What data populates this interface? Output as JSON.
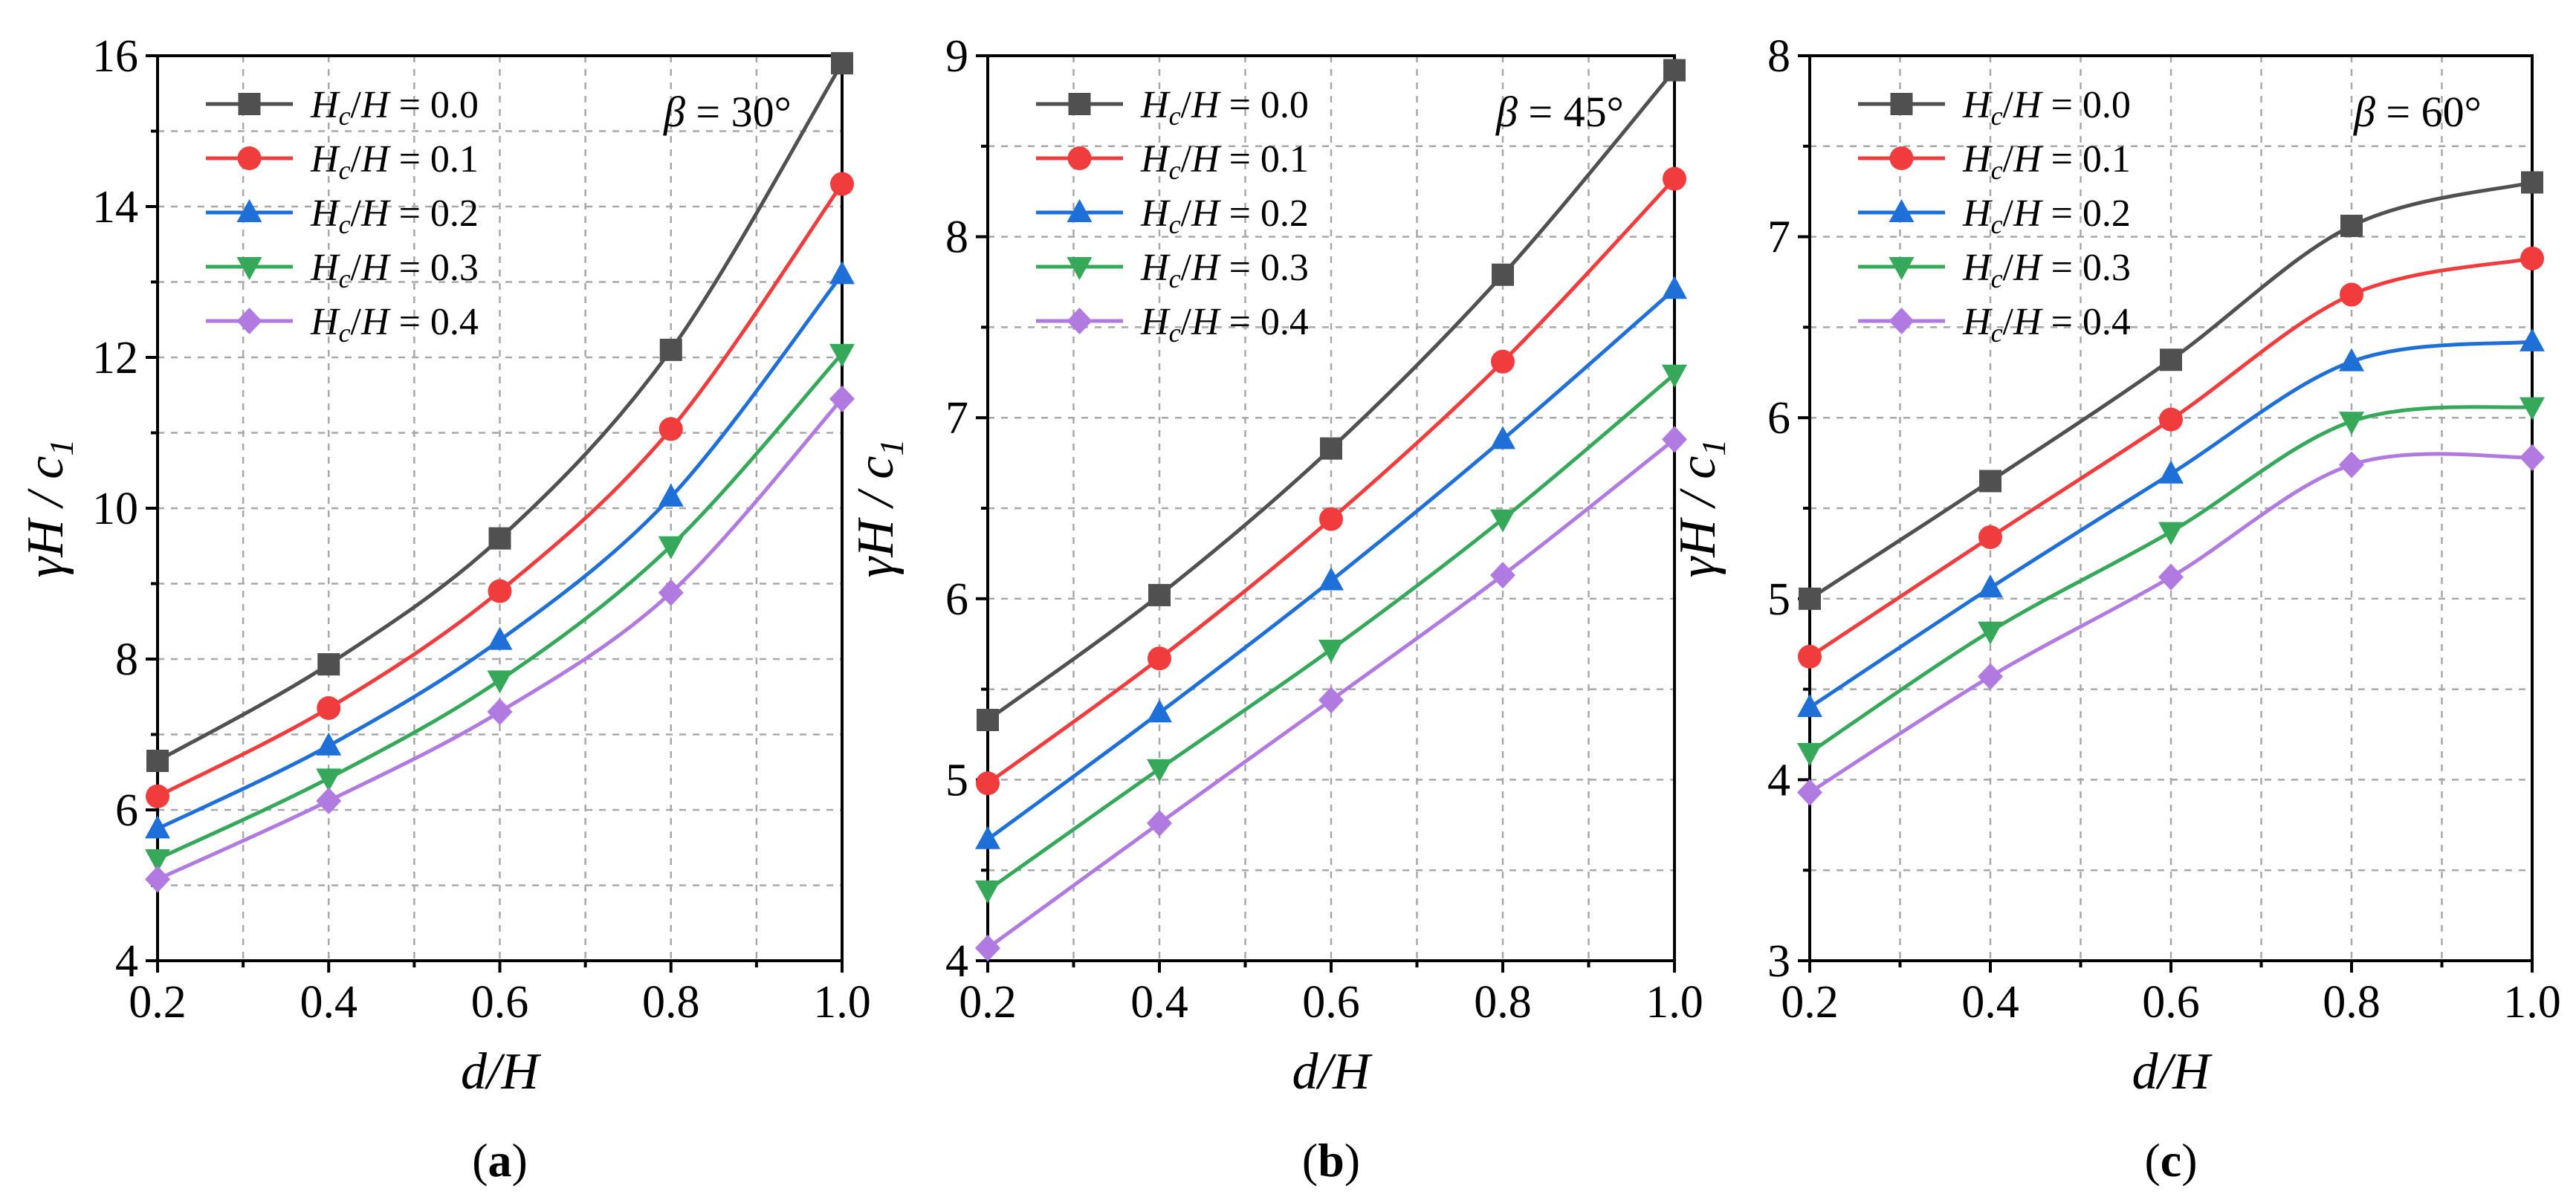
{
  "chart_data": [
    {
      "type": "line",
      "annotation": "β = 30°",
      "panel_label": "a",
      "xlabel": "d/H",
      "ylabel": "γH / c1",
      "xlim": [
        0.2,
        1.0
      ],
      "ylim": [
        4,
        16
      ],
      "x_ticks": [
        "0.2",
        "0.4",
        "0.6",
        "0.8",
        "1.0"
      ],
      "y_ticks": [
        "4",
        "6",
        "8",
        "10",
        "12",
        "14",
        "16"
      ],
      "legend_position": "top-left",
      "x": [
        0.2,
        0.4,
        0.6,
        0.8,
        1.0
      ],
      "series": [
        {
          "name": "Hc/H = 0.0",
          "legend_value": "0.0",
          "color": "#505050",
          "marker": "square",
          "values": [
            6.65,
            7.93,
            9.6,
            12.1,
            15.9
          ]
        },
        {
          "name": "Hc/H = 0.1",
          "legend_value": "0.1",
          "color": "#f03c3c",
          "marker": "circle",
          "values": [
            6.18,
            7.35,
            8.9,
            11.05,
            14.3
          ]
        },
        {
          "name": "Hc/H = 0.2",
          "legend_value": "0.2",
          "color": "#1f6fd8",
          "marker": "triangle-up",
          "values": [
            5.75,
            6.85,
            8.25,
            10.15,
            13.1
          ]
        },
        {
          "name": "Hc/H = 0.3",
          "legend_value": "0.3",
          "color": "#35a85a",
          "marker": "triangle-down",
          "values": [
            5.35,
            6.42,
            7.72,
            9.5,
            12.05
          ]
        },
        {
          "name": "Hc/H = 0.4",
          "legend_value": "0.4",
          "color": "#b07ae0",
          "marker": "diamond",
          "values": [
            5.08,
            6.12,
            7.3,
            8.88,
            11.45
          ]
        }
      ]
    },
    {
      "type": "line",
      "annotation": "β = 45°",
      "panel_label": "b",
      "xlabel": "d/H",
      "ylabel": "γH / c1",
      "xlim": [
        0.2,
        1.0
      ],
      "ylim": [
        4,
        9
      ],
      "x_ticks": [
        "0.2",
        "0.4",
        "0.6",
        "0.8",
        "1.0"
      ],
      "y_ticks": [
        "4",
        "5",
        "6",
        "7",
        "8",
        "9"
      ],
      "legend_position": "top-left",
      "x": [
        0.2,
        0.4,
        0.6,
        0.8,
        1.0
      ],
      "series": [
        {
          "name": "Hc/H = 0.0",
          "legend_value": "0.0",
          "color": "#505050",
          "marker": "square",
          "values": [
            5.33,
            6.02,
            6.83,
            7.79,
            8.92
          ]
        },
        {
          "name": "Hc/H = 0.1",
          "legend_value": "0.1",
          "color": "#f03c3c",
          "marker": "circle",
          "values": [
            4.98,
            5.67,
            6.44,
            7.31,
            8.32
          ]
        },
        {
          "name": "Hc/H = 0.2",
          "legend_value": "0.2",
          "color": "#1f6fd8",
          "marker": "triangle-up",
          "values": [
            4.67,
            5.37,
            6.1,
            6.88,
            7.71
          ]
        },
        {
          "name": "Hc/H = 0.3",
          "legend_value": "0.3",
          "color": "#35a85a",
          "marker": "triangle-down",
          "values": [
            4.39,
            5.06,
            5.72,
            6.44,
            7.24
          ]
        },
        {
          "name": "Hc/H = 0.4",
          "legend_value": "0.4",
          "color": "#b07ae0",
          "marker": "diamond",
          "values": [
            4.07,
            4.76,
            5.44,
            6.13,
            6.88
          ]
        }
      ]
    },
    {
      "type": "line",
      "annotation": "β = 60°",
      "panel_label": "c",
      "xlabel": "d/H",
      "ylabel": "γH / c1",
      "xlim": [
        0.2,
        1.0
      ],
      "ylim": [
        3,
        8
      ],
      "x_ticks": [
        "0.2",
        "0.4",
        "0.6",
        "0.8",
        "1.0"
      ],
      "y_ticks": [
        "3",
        "4",
        "5",
        "6",
        "7",
        "8"
      ],
      "legend_position": "top-left",
      "x": [
        0.2,
        0.4,
        0.6,
        0.8,
        1.0
      ],
      "series": [
        {
          "name": "Hc/H = 0.0",
          "legend_value": "0.0",
          "color": "#505050",
          "marker": "square",
          "values": [
            5.0,
            5.65,
            6.32,
            7.06,
            7.3
          ]
        },
        {
          "name": "Hc/H = 0.1",
          "legend_value": "0.1",
          "color": "#f03c3c",
          "marker": "circle",
          "values": [
            4.68,
            5.34,
            5.99,
            6.68,
            6.88
          ]
        },
        {
          "name": "Hc/H = 0.2",
          "legend_value": "0.2",
          "color": "#1f6fd8",
          "marker": "triangle-up",
          "values": [
            4.4,
            5.06,
            5.69,
            6.31,
            6.42
          ]
        },
        {
          "name": "Hc/H = 0.3",
          "legend_value": "0.3",
          "color": "#35a85a",
          "marker": "triangle-down",
          "values": [
            4.15,
            4.82,
            5.37,
            5.98,
            6.06
          ]
        },
        {
          "name": "Hc/H = 0.4",
          "legend_value": "0.4",
          "color": "#b07ae0",
          "marker": "diamond",
          "values": [
            3.93,
            4.57,
            5.12,
            5.74,
            5.78
          ]
        }
      ]
    }
  ]
}
